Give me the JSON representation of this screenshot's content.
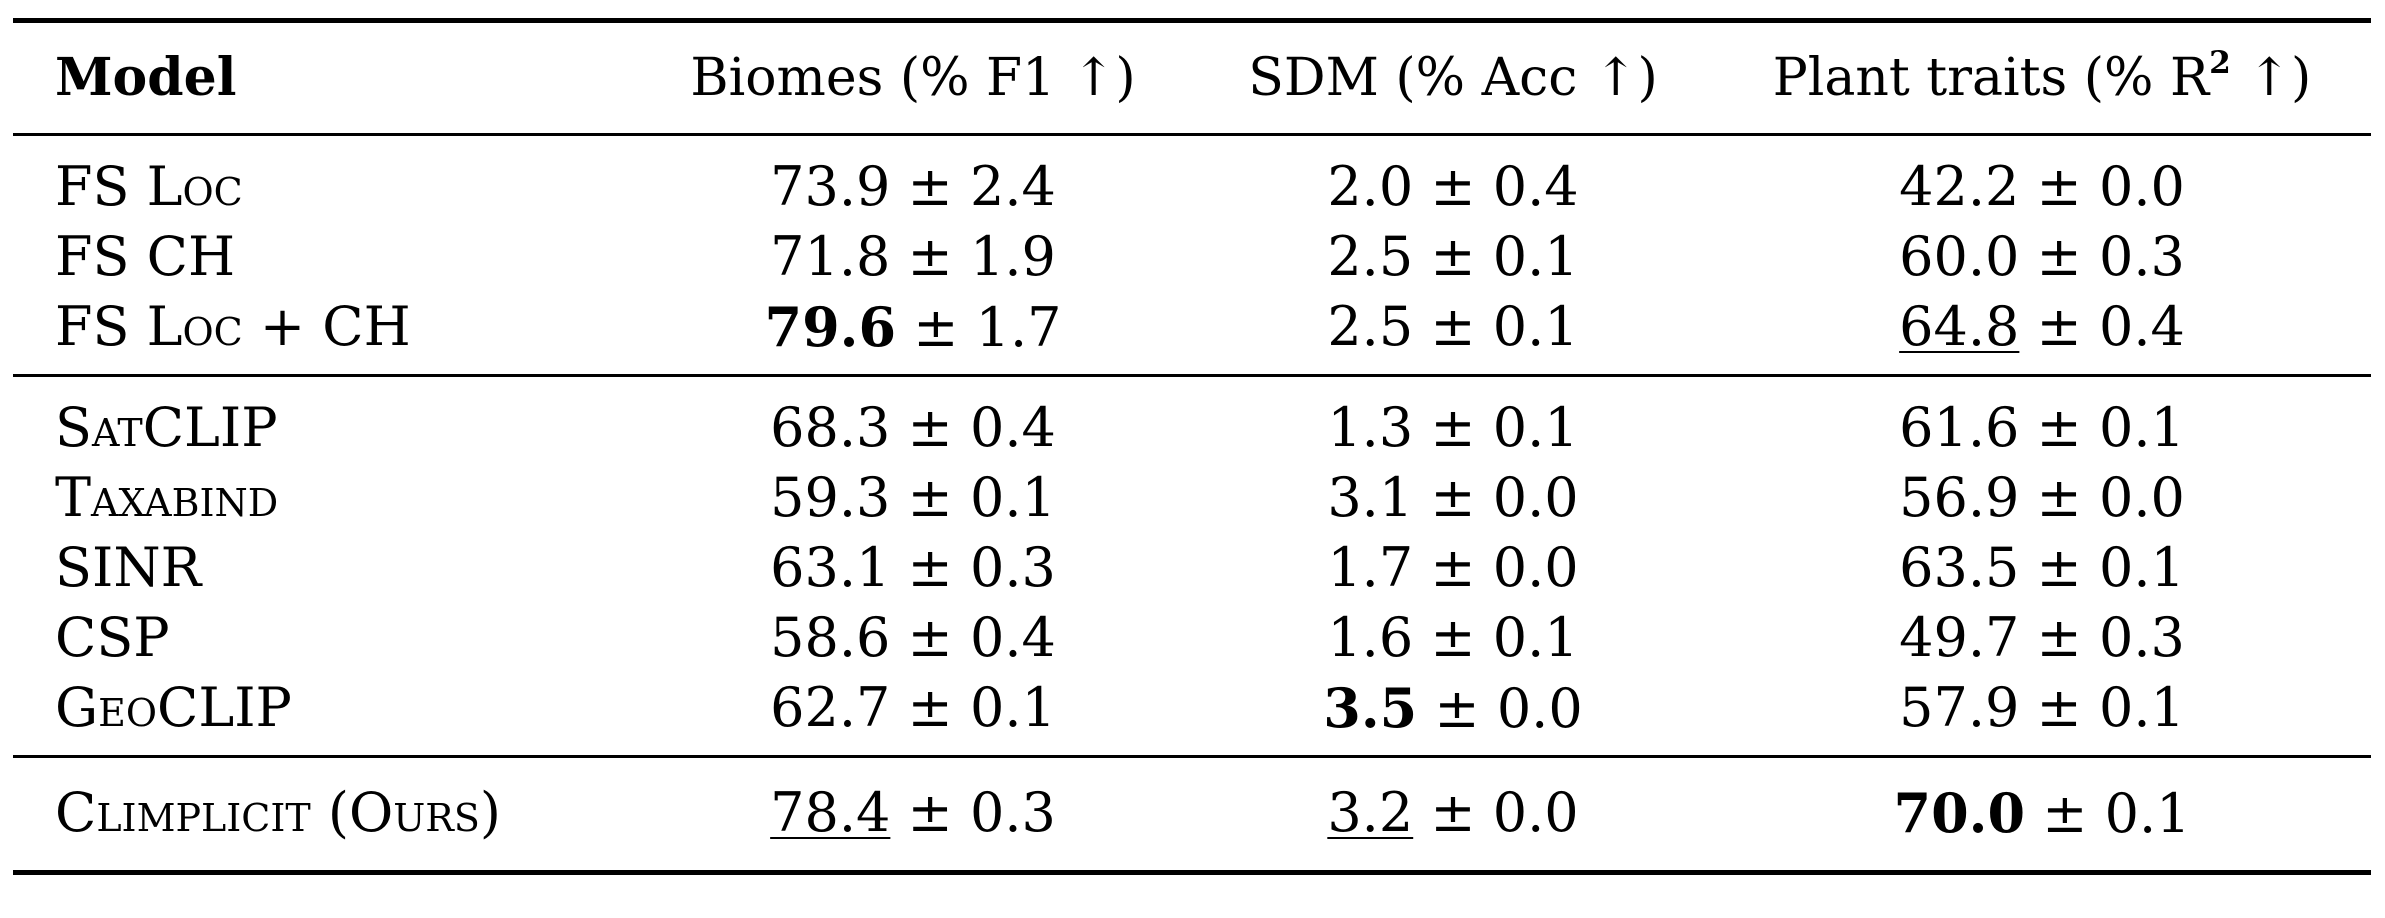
{
  "table": {
    "headers": {
      "model": "Model",
      "biomes": "Biomes (% F1 ↑)",
      "sdm": "SDM (% Acc ↑)",
      "plant_traits_prefix": "Plant traits (% R",
      "plant_traits_sup": "2",
      "plant_traits_suffix": " ↑)"
    },
    "groups": [
      {
        "rows": [
          {
            "model": "FS Loc",
            "biomes": {
              "mean": "73.9",
              "std": "± 2.4"
            },
            "sdm": {
              "mean": "2.0",
              "std": "± 0.4"
            },
            "traits": {
              "mean": "42.2",
              "std": "± 0.0"
            }
          },
          {
            "model": "FS CH",
            "biomes": {
              "mean": "71.8",
              "std": "± 1.9"
            },
            "sdm": {
              "mean": "2.5",
              "std": "± 0.1"
            },
            "traits": {
              "mean": "60.0",
              "std": "± 0.3"
            }
          },
          {
            "model": "FS Loc + CH",
            "biomes": {
              "mean": "79.6",
              "std": "± 1.7"
            },
            "sdm": {
              "mean": "2.5",
              "std": "± 0.1"
            },
            "traits": {
              "mean": "64.8",
              "std": "± 0.4"
            }
          }
        ]
      },
      {
        "rows": [
          {
            "model": "SatCLIP",
            "biomes": {
              "mean": "68.3",
              "std": "± 0.4"
            },
            "sdm": {
              "mean": "1.3",
              "std": "± 0.1"
            },
            "traits": {
              "mean": "61.6",
              "std": "± 0.1"
            }
          },
          {
            "model": "Taxabind",
            "biomes": {
              "mean": "59.3",
              "std": "± 0.1"
            },
            "sdm": {
              "mean": "3.1",
              "std": "± 0.0"
            },
            "traits": {
              "mean": "56.9",
              "std": "± 0.0"
            }
          },
          {
            "model": "SINR",
            "biomes": {
              "mean": "63.1",
              "std": "± 0.3"
            },
            "sdm": {
              "mean": "1.7",
              "std": "± 0.0"
            },
            "traits": {
              "mean": "63.5",
              "std": "± 0.1"
            }
          },
          {
            "model": "CSP",
            "biomes": {
              "mean": "58.6",
              "std": "± 0.4"
            },
            "sdm": {
              "mean": "1.6",
              "std": "± 0.1"
            },
            "traits": {
              "mean": "49.7",
              "std": "± 0.3"
            }
          },
          {
            "model": "GeoCLIP",
            "biomes": {
              "mean": "62.7",
              "std": "± 0.1"
            },
            "sdm": {
              "mean": "3.5",
              "std": "± 0.0"
            },
            "traits": {
              "mean": "57.9",
              "std": "± 0.1"
            }
          }
        ]
      },
      {
        "rows": [
          {
            "model": "Climplicit (Ours)",
            "biomes": {
              "mean": "78.4",
              "std": "± 0.3"
            },
            "sdm": {
              "mean": "3.2",
              "std": "± 0.0"
            },
            "traits": {
              "mean": "70.0",
              "std": "± 0.1"
            }
          }
        ]
      }
    ]
  }
}
